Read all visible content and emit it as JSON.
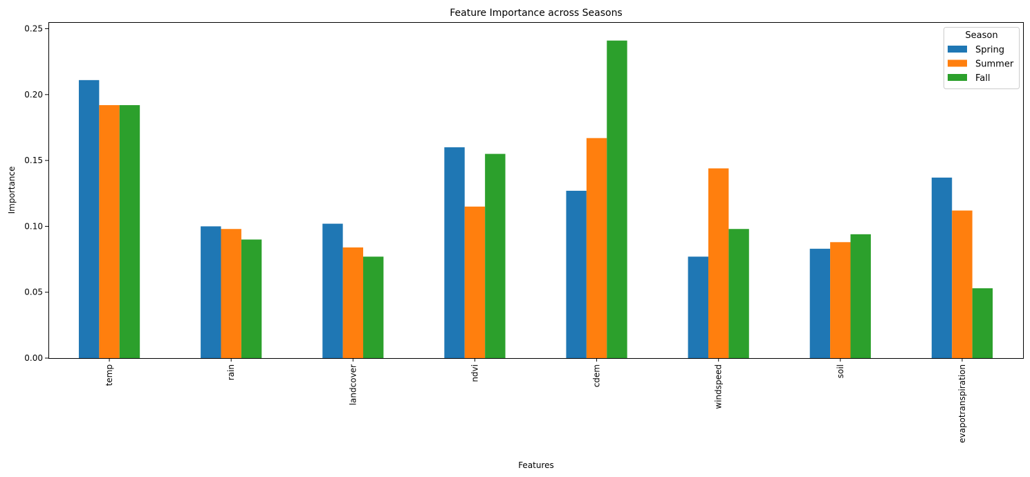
{
  "chart_data": {
    "type": "bar",
    "title": "Feature Importance across Seasons",
    "xlabel": "Features",
    "ylabel": "Importance",
    "ylim": [
      0,
      0.255
    ],
    "yticks": [
      "0.00",
      "0.05",
      "0.10",
      "0.15",
      "0.20",
      "0.25"
    ],
    "grid": false,
    "legend": {
      "title": "Season",
      "placement": "top-right"
    },
    "categories": [
      "temp",
      "rain",
      "landcover",
      "ndvi",
      "cdem",
      "windspeed",
      "soil",
      "evapotranspiration"
    ],
    "series": [
      {
        "name": "Spring",
        "color": "#1f77b4",
        "values": [
          0.211,
          0.1,
          0.102,
          0.16,
          0.127,
          0.077,
          0.083,
          0.137
        ]
      },
      {
        "name": "Summer",
        "color": "#ff7f0e",
        "values": [
          0.192,
          0.098,
          0.084,
          0.115,
          0.167,
          0.144,
          0.088,
          0.112
        ]
      },
      {
        "name": "Fall",
        "color": "#2ca02c",
        "values": [
          0.192,
          0.09,
          0.077,
          0.155,
          0.241,
          0.098,
          0.094,
          0.053
        ]
      }
    ]
  }
}
